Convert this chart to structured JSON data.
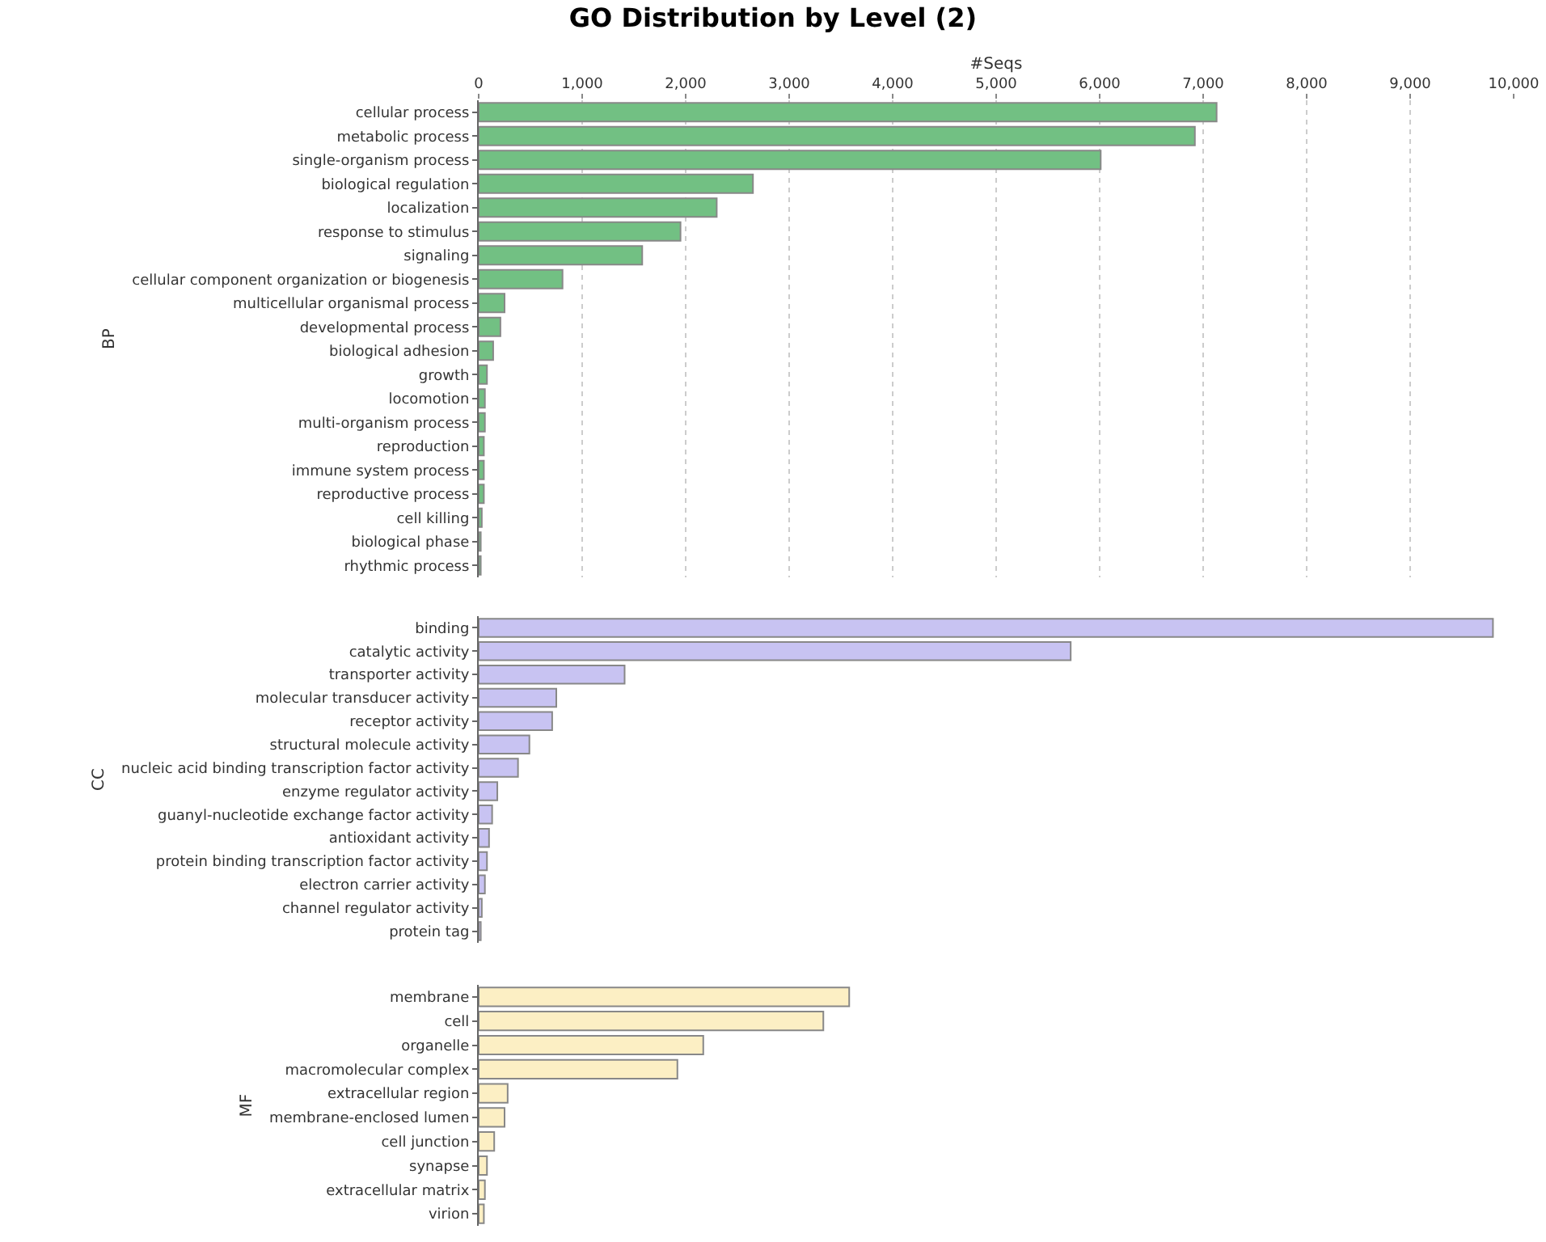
{
  "chart_data": [
    {
      "type": "bar",
      "orientation": "horizontal",
      "title": "GO Distribution by Level (2)",
      "xlabel": "#Seqs",
      "ylabel": "BP",
      "categories": [
        "cellular process",
        "metabolic process",
        "single-organism process",
        "biological regulation",
        "localization",
        "response to stimulus",
        "signaling",
        "cellular component organization or biogenesis",
        "multicellular organismal process",
        "developmental process",
        "biological adhesion",
        "growth",
        "locomotion",
        "multi-organism process",
        "reproduction",
        "immune system process",
        "reproductive process",
        "cell killing",
        "biological phase",
        "rhythmic process"
      ],
      "values": [
        7130,
        6920,
        6010,
        2650,
        2300,
        1950,
        1580,
        810,
        250,
        210,
        140,
        80,
        60,
        60,
        50,
        50,
        50,
        30,
        20,
        20
      ],
      "color": "#72c083",
      "xlim": [
        0,
        10000
      ],
      "xticks": [
        {
          "value": 0,
          "label": "0"
        },
        {
          "value": 1000,
          "label": "1,000"
        },
        {
          "value": 2000,
          "label": "2,000"
        },
        {
          "value": 3000,
          "label": "3,000"
        },
        {
          "value": 4000,
          "label": "4,000"
        },
        {
          "value": 5000,
          "label": "5,000"
        },
        {
          "value": 6000,
          "label": "6,000"
        },
        {
          "value": 7000,
          "label": "7,000"
        },
        {
          "value": 8000,
          "label": "8,000"
        },
        {
          "value": 9000,
          "label": "9,000"
        },
        {
          "value": 10000,
          "label": "10,000"
        }
      ],
      "grid": "x",
      "legend": false
    },
    {
      "type": "bar",
      "orientation": "horizontal",
      "ylabel": "CC",
      "categories": [
        "binding",
        "catalytic activity",
        "transporter activity",
        "molecular transducer activity",
        "receptor activity",
        "structural molecule activity",
        "nucleic acid binding transcription factor activity",
        "enzyme regulator activity",
        "guanyl-nucleotide exchange factor activity",
        "antioxidant activity",
        "protein binding transcription factor activity",
        "electron carrier activity",
        "channel regulator activity",
        "protein tag"
      ],
      "values": [
        9800,
        5720,
        1410,
        750,
        710,
        490,
        380,
        180,
        130,
        100,
        80,
        60,
        30,
        20
      ],
      "color": "#c8c3f2",
      "xlim": [
        0,
        10000
      ],
      "grid": "x",
      "legend": false,
      "tick_labels": "y"
    },
    {
      "type": "bar",
      "orientation": "horizontal",
      "ylabel": "MF",
      "categories": [
        "membrane",
        "cell",
        "organelle",
        "macromolecular complex",
        "extracellular region",
        "membrane-enclosed lumen",
        "cell junction",
        "synapse",
        "extracellular matrix",
        "virion"
      ],
      "values": [
        3580,
        3330,
        2170,
        1920,
        280,
        250,
        150,
        80,
        60,
        50
      ],
      "color": "#fcefc4",
      "xlim": [
        0,
        10000
      ],
      "grid": "x",
      "legend": false,
      "tick_labels": "y"
    }
  ]
}
